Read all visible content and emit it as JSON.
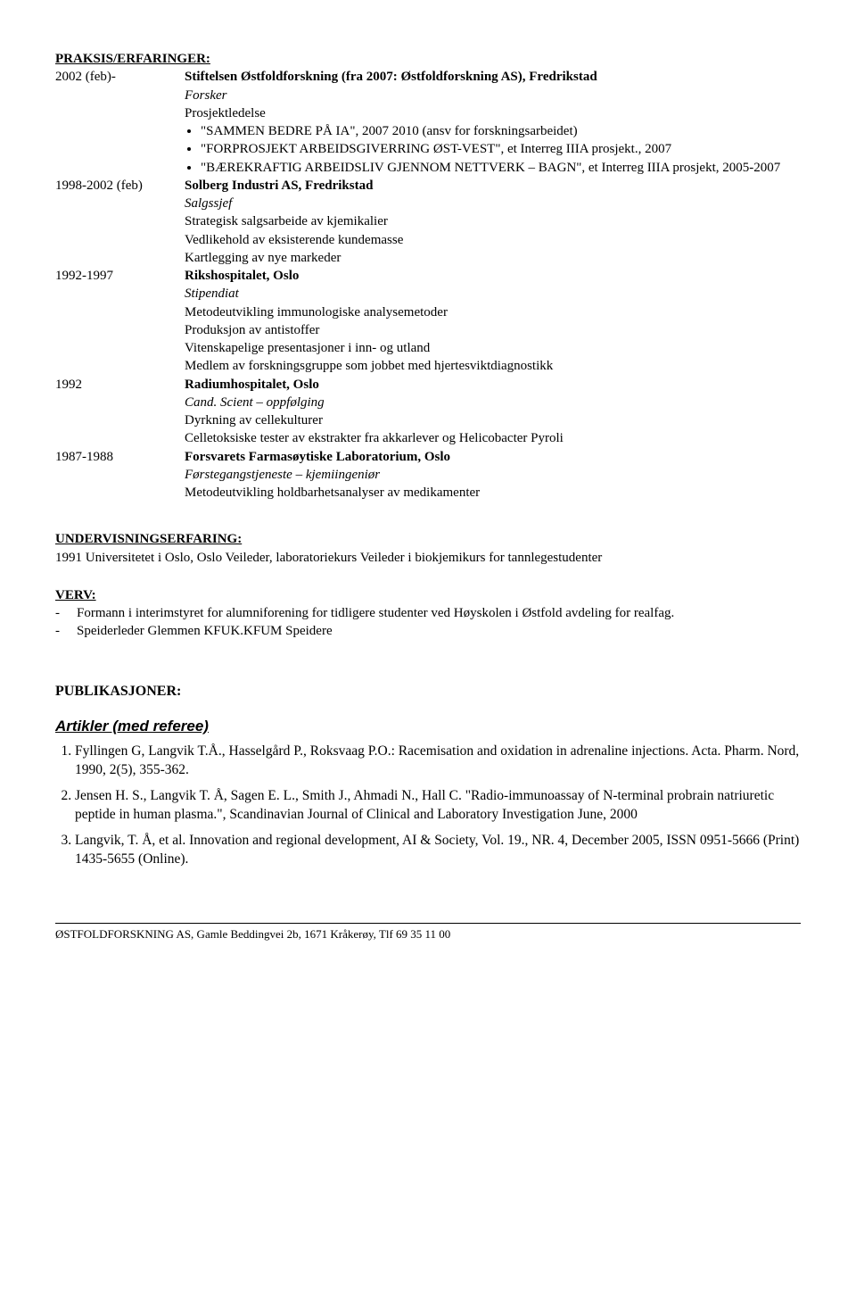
{
  "praksis": {
    "heading": "PRAKSIS/ERFARINGER:",
    "items": [
      {
        "year": "2002 (feb)-",
        "org": "Stiftelsen Østfoldforskning (fra 2007: Østfoldforskning AS), Fredrikstad",
        "role": "Forsker",
        "role2": "Prosjektledelse",
        "projects": [
          "\"SAMMEN BEDRE PÅ IA\", 2007 2010 (ansv for forskningsarbeidet)",
          "\"FORPROSJEKT ARBEIDSGIVERRING ØST-VEST\", et Interreg IIIA prosjekt., 2007",
          "\"BÆREKRAFTIG ARBEIDSLIV GJENNOM NETTVERK – BAGN\", et Interreg IIIA prosjekt, 2005-2007"
        ]
      },
      {
        "year": "1998-2002 (feb)",
        "org": "Solberg Industri AS, Fredrikstad",
        "role": "Salgssjef",
        "lines": [
          "Strategisk salgsarbeide av kjemikalier",
          "Vedlikehold av eksisterende kundemasse",
          "Kartlegging av nye markeder"
        ]
      },
      {
        "year": "1992-1997",
        "org": "Rikshospitalet, Oslo",
        "role": "Stipendiat",
        "lines": [
          "Metodeutvikling immunologiske analysemetoder",
          "Produksjon av antistoffer",
          "Vitenskapelige presentasjoner i inn- og utland",
          "Medlem av forskningsgruppe som jobbet med hjertesviktdiagnostikk"
        ]
      },
      {
        "year": "1992",
        "org": "Radiumhospitalet, Oslo",
        "role": "Cand. Scient – oppfølging",
        "lines": [
          "Dyrkning av cellekulturer",
          "Celletoksiske tester av ekstrakter fra akkarlever og Helicobacter Pyroli"
        ]
      },
      {
        "year": "1987-1988",
        "org": "Forsvarets Farmasøytiske Laboratorium, Oslo",
        "role": "Førstegangstjeneste – kjemiingeniør",
        "lines": [
          "Metodeutvikling holdbarhetsanalyser av medikamenter"
        ]
      }
    ]
  },
  "undervisning": {
    "heading": "UNDERVISNINGSERFARING:",
    "line": "1991 Universitetet i Oslo, Oslo Veileder, laboratoriekurs Veileder i biokjemikurs for tannlegestudenter"
  },
  "verv": {
    "heading": "VERV:",
    "items": [
      "Formann i interimstyret for alumniforening for tidligere  studenter ved Høyskolen i Østfold avdeling for realfag.",
      "Speiderleder Glemmen KFUK.KFUM Speidere"
    ]
  },
  "publikasjoner": {
    "heading": "PUBLIKASJONER:",
    "subheading": "Artikler (med referee)",
    "items": [
      "Fyllingen G, Langvik T.Å., Hasselgård P., Roksvaag P.O.: Racemisation and oxidation in adrenaline injections. Acta. Pharm. Nord, 1990, 2(5), 355-362.",
      "Jensen H. S., Langvik T. Å, Sagen E. L., Smith J., Ahmadi N., Hall C. \"Radio-immunoassay of N-terminal probrain natriuretic peptide in human plasma.\", Scandinavian Journal of  Clinical and Laboratory Investigation June, 2000",
      "Langvik, T. Å, et al. Innovation and regional development, AI & Society, Vol. 19., NR. 4, December 2005, ISSN 0951-5666 (Print) 1435-5655 (Online)."
    ]
  },
  "footer": "ØSTFOLDFORSKNING AS, Gamle Beddingvei 2b, 1671 Kråkerøy, Tlf 69 35 11 00"
}
